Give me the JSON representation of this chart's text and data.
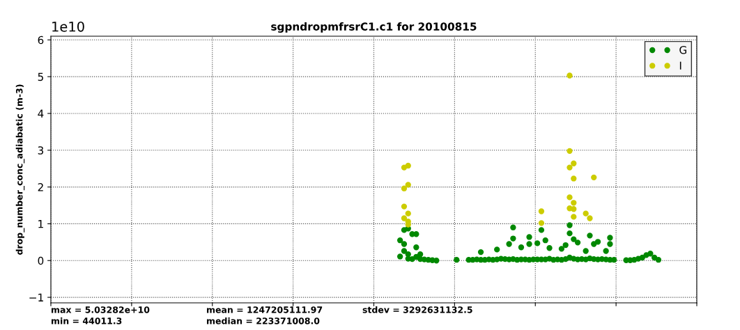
{
  "chart_data": {
    "type": "scatter",
    "title": "sgpndropmfrsrC1.c1 for 20100815",
    "ylabel": "drop_number_conc_adiabatic (m-3)",
    "annotations": [
      "1e10",
      "max = 5.03282e+10",
      "min = 44011.3",
      "mean = 1247205111.97",
      "median = 223371008.0",
      "stdev = 3292631132.5"
    ],
    "categories": [
      null,
      null,
      null,
      null,
      null,
      null,
      null,
      null,
      null,
      null,
      null,
      null,
      null,
      null,
      null,
      null,
      null,
      null,
      null,
      null,
      null,
      null,
      null,
      null,
      null,
      null,
      null,
      null,
      null,
      null,
      null,
      null,
      null,
      null,
      null,
      null,
      null,
      null,
      null,
      null,
      null,
      null,
      null,
      null,
      null,
      null,
      null,
      null,
      null,
      null,
      null,
      null,
      null,
      null,
      null,
      null,
      null,
      null,
      null,
      null,
      null,
      null,
      null,
      null,
      null,
      null,
      null,
      null,
      null,
      null,
      null,
      null,
      null,
      null,
      null,
      null,
      null,
      null,
      null,
      null,
      null,
      null,
      null,
      null,
      null,
      null,
      null,
      null,
      null,
      null,
      null,
      null,
      null,
      null,
      null,
      null,
      null,
      null,
      null,
      null,
      null,
      null,
      null,
      null,
      null,
      null,
      null,
      null,
      null,
      null,
      null,
      null,
      null,
      null,
      null,
      null,
      null,
      null,
      null,
      null,
      null,
      null,
      null,
      null,
      null,
      null,
      null,
      null,
      null,
      null,
      null,
      null,
      null,
      null,
      null,
      null,
      null,
      null,
      null,
      null,
      null,
      null,
      null,
      null,
      null,
      null,
      null,
      null,
      null,
      null,
      null,
      null,
      null,
      null,
      null,
      null,
      null,
      null,
      null,
      null
    ],
    "ylim": [
      -1.15,
      6.1
    ],
    "yticks": [
      {
        "value": -1,
        "label": "−1"
      },
      0,
      1,
      2,
      3,
      4,
      5,
      6
    ],
    "grid": true,
    "legend": "top right",
    "marker": "circle",
    "series": [
      {
        "name": "G",
        "color": "#008800",
        "values": [
          null,
          null,
          null,
          null,
          null,
          null,
          null,
          null,
          null,
          null,
          null,
          null,
          null,
          null,
          null,
          null,
          null,
          null,
          null,
          null,
          null,
          null,
          null,
          null,
          null,
          null,
          null,
          null,
          null,
          null,
          null,
          null,
          null,
          null,
          null,
          null,
          null,
          null,
          null,
          null,
          null,
          null,
          null,
          null,
          null,
          null,
          null,
          null,
          null,
          null,
          null,
          null,
          null,
          null,
          null,
          null,
          null,
          null,
          null,
          null,
          null,
          null,
          null,
          null,
          null,
          null,
          null,
          null,
          null,
          null,
          null,
          null,
          null,
          null,
          null,
          null,
          null,
          null,
          null,
          null,
          null,
          null,
          null,
          null,
          null,
          null,
          0.55,
          0.83,
          0.87,
          0.72,
          0.72,
          0.17,
          0.03,
          0.02,
          0.01,
          0.0,
          null,
          null,
          null,
          null,
          0.02,
          null,
          null,
          0.02,
          0.02,
          0.03,
          0.23,
          0.02,
          0.03,
          0.02,
          0.3,
          0.05,
          0.04,
          0.45,
          0.9,
          0.02,
          0.36,
          0.03,
          0.64,
          0.03,
          0.47,
          null,
          0.55,
          0.34,
          0.02,
          0.03,
          0.32,
          0.42,
          0.96,
          0.58,
          0.49,
          0.04,
          0.26,
          0.68,
          0.45,
          0.51,
          0.04,
          0.26,
          0.62,
          0.02,
          null,
          null,
          0.01,
          0.01,
          0.02,
          0.05,
          0.08,
          0.15,
          0.19,
          0.08,
          0.02,
          null,
          null,
          null,
          null,
          null,
          null,
          null,
          null,
          null
        ]
      },
      {
        "color": "#008800",
        "values": [
          null,
          null,
          null,
          null,
          null,
          null,
          null,
          null,
          null,
          null,
          null,
          null,
          null,
          null,
          null,
          null,
          null,
          null,
          null,
          null,
          null,
          null,
          null,
          null,
          null,
          null,
          null,
          null,
          null,
          null,
          null,
          null,
          null,
          null,
          null,
          null,
          null,
          null,
          null,
          null,
          null,
          null,
          null,
          null,
          null,
          null,
          null,
          null,
          null,
          null,
          null,
          null,
          null,
          null,
          null,
          null,
          null,
          null,
          null,
          null,
          null,
          null,
          null,
          null,
          null,
          null,
          null,
          null,
          null,
          null,
          null,
          null,
          null,
          null,
          null,
          null,
          null,
          null,
          null,
          null,
          null,
          null,
          null,
          null,
          null,
          null,
          0.11,
          0.45,
          0.17,
          0.04,
          0.36,
          0.04,
          null,
          null,
          null,
          null,
          null,
          null,
          null,
          null,
          null,
          null,
          null,
          null,
          null,
          null,
          0.02,
          null,
          null,
          null,
          0.03,
          null,
          null,
          0.03,
          0.6,
          null,
          0.03,
          null,
          0.45,
          null,
          0.03,
          0.83,
          0.03,
          0.05,
          null,
          null,
          0.02,
          0.04,
          0.74,
          0.05,
          0.03,
          null,
          0.03,
          0.06,
          0.04,
          0.03,
          null,
          0.03,
          0.45,
          null,
          null,
          null,
          null,
          null,
          null,
          null,
          null,
          null,
          null,
          null,
          null,
          null,
          null,
          null,
          null,
          null,
          null,
          null,
          null,
          null
        ]
      },
      {
        "color": "#008800",
        "values": [
          null,
          null,
          null,
          null,
          null,
          null,
          null,
          null,
          null,
          null,
          null,
          null,
          null,
          null,
          null,
          null,
          null,
          null,
          null,
          null,
          null,
          null,
          null,
          null,
          null,
          null,
          null,
          null,
          null,
          null,
          null,
          null,
          null,
          null,
          null,
          null,
          null,
          null,
          null,
          null,
          null,
          null,
          null,
          null,
          null,
          null,
          null,
          null,
          null,
          null,
          null,
          null,
          null,
          null,
          null,
          null,
          null,
          null,
          null,
          null,
          null,
          null,
          null,
          null,
          null,
          null,
          null,
          null,
          null,
          null,
          null,
          null,
          null,
          null,
          null,
          null,
          null,
          null,
          null,
          null,
          null,
          null,
          null,
          null,
          null,
          null,
          null,
          0.26,
          0.05,
          null,
          0.1,
          null,
          null,
          null,
          null,
          null,
          null,
          null,
          null,
          null,
          null,
          null,
          null,
          null,
          null,
          null,
          null,
          null,
          null,
          null,
          null,
          null,
          null,
          null,
          0.04,
          null,
          null,
          null,
          0.02,
          null,
          null,
          0.03,
          null,
          null,
          null,
          null,
          null,
          null,
          0.08,
          null,
          null,
          null,
          null,
          null,
          null,
          null,
          null,
          null,
          0.02,
          null,
          null,
          null,
          null,
          null,
          null,
          null,
          null,
          null,
          null,
          null,
          null,
          null,
          null,
          null,
          null,
          null,
          null,
          null,
          null,
          null
        ]
      },
      {
        "name": "I",
        "color": "#cccc00",
        "values": [
          null,
          null,
          null,
          null,
          null,
          null,
          null,
          null,
          null,
          null,
          null,
          null,
          null,
          null,
          null,
          null,
          null,
          null,
          null,
          null,
          null,
          null,
          null,
          null,
          null,
          null,
          null,
          null,
          null,
          null,
          null,
          null,
          null,
          null,
          null,
          null,
          null,
          null,
          null,
          null,
          null,
          null,
          null,
          null,
          null,
          null,
          null,
          null,
          null,
          null,
          null,
          null,
          null,
          null,
          null,
          null,
          null,
          null,
          null,
          null,
          null,
          null,
          null,
          null,
          null,
          null,
          null,
          null,
          null,
          null,
          null,
          null,
          null,
          null,
          null,
          null,
          null,
          null,
          null,
          null,
          null,
          null,
          null,
          null,
          null,
          null,
          null,
          2.53,
          2.58,
          null,
          null,
          null,
          null,
          null,
          null,
          null,
          null,
          null,
          null,
          null,
          null,
          null,
          null,
          null,
          null,
          null,
          null,
          null,
          null,
          null,
          null,
          null,
          null,
          null,
          null,
          null,
          null,
          null,
          null,
          null,
          null,
          1.34,
          null,
          null,
          null,
          null,
          null,
          null,
          5.03,
          2.64,
          null,
          null,
          1.28,
          1.15,
          2.26,
          null,
          null,
          null,
          null,
          null,
          null,
          null,
          null,
          null,
          null,
          null,
          null,
          null,
          null,
          null,
          null,
          null,
          null,
          null,
          null,
          null,
          null,
          null,
          null,
          null
        ]
      },
      {
        "color": "#cccc00",
        "values": [
          null,
          null,
          null,
          null,
          null,
          null,
          null,
          null,
          null,
          null,
          null,
          null,
          null,
          null,
          null,
          null,
          null,
          null,
          null,
          null,
          null,
          null,
          null,
          null,
          null,
          null,
          null,
          null,
          null,
          null,
          null,
          null,
          null,
          null,
          null,
          null,
          null,
          null,
          null,
          null,
          null,
          null,
          null,
          null,
          null,
          null,
          null,
          null,
          null,
          null,
          null,
          null,
          null,
          null,
          null,
          null,
          null,
          null,
          null,
          null,
          null,
          null,
          null,
          null,
          null,
          null,
          null,
          null,
          null,
          null,
          null,
          null,
          null,
          null,
          null,
          null,
          null,
          null,
          null,
          null,
          null,
          null,
          null,
          null,
          null,
          null,
          null,
          1.96,
          2.06,
          null,
          null,
          null,
          null,
          null,
          null,
          null,
          null,
          null,
          null,
          null,
          null,
          null,
          null,
          null,
          null,
          null,
          null,
          null,
          null,
          null,
          null,
          null,
          null,
          null,
          null,
          null,
          null,
          null,
          null,
          null,
          null,
          1.02,
          null,
          null,
          null,
          null,
          null,
          null,
          2.98,
          2.23,
          null,
          null,
          null,
          null,
          null,
          null,
          null,
          null,
          null,
          null,
          null,
          null,
          null,
          null,
          null,
          null,
          null,
          null,
          null,
          null,
          null,
          null,
          null,
          null,
          null,
          null,
          null,
          null,
          null,
          null
        ]
      },
      {
        "color": "#cccc00",
        "values": [
          null,
          null,
          null,
          null,
          null,
          null,
          null,
          null,
          null,
          null,
          null,
          null,
          null,
          null,
          null,
          null,
          null,
          null,
          null,
          null,
          null,
          null,
          null,
          null,
          null,
          null,
          null,
          null,
          null,
          null,
          null,
          null,
          null,
          null,
          null,
          null,
          null,
          null,
          null,
          null,
          null,
          null,
          null,
          null,
          null,
          null,
          null,
          null,
          null,
          null,
          null,
          null,
          null,
          null,
          null,
          null,
          null,
          null,
          null,
          null,
          null,
          null,
          null,
          null,
          null,
          null,
          null,
          null,
          null,
          null,
          null,
          null,
          null,
          null,
          null,
          null,
          null,
          null,
          null,
          null,
          null,
          null,
          null,
          null,
          null,
          null,
          null,
          1.47,
          1.28,
          null,
          null,
          null,
          null,
          null,
          null,
          null,
          null,
          null,
          null,
          null,
          null,
          null,
          null,
          null,
          null,
          null,
          null,
          null,
          null,
          null,
          null,
          null,
          null,
          null,
          null,
          null,
          null,
          null,
          null,
          null,
          null,
          null,
          null,
          null,
          null,
          null,
          null,
          null,
          2.53,
          1.57,
          null,
          null,
          null,
          null,
          null,
          null,
          null,
          null,
          null,
          null,
          null,
          null,
          null,
          null,
          null,
          null,
          null,
          null,
          null,
          null,
          null,
          null,
          null,
          null,
          null,
          null,
          null,
          null,
          null,
          null
        ]
      },
      {
        "color": "#cccc00",
        "values": [
          null,
          null,
          null,
          null,
          null,
          null,
          null,
          null,
          null,
          null,
          null,
          null,
          null,
          null,
          null,
          null,
          null,
          null,
          null,
          null,
          null,
          null,
          null,
          null,
          null,
          null,
          null,
          null,
          null,
          null,
          null,
          null,
          null,
          null,
          null,
          null,
          null,
          null,
          null,
          null,
          null,
          null,
          null,
          null,
          null,
          null,
          null,
          null,
          null,
          null,
          null,
          null,
          null,
          null,
          null,
          null,
          null,
          null,
          null,
          null,
          null,
          null,
          null,
          null,
          null,
          null,
          null,
          null,
          null,
          null,
          null,
          null,
          null,
          null,
          null,
          null,
          null,
          null,
          null,
          null,
          null,
          null,
          null,
          null,
          null,
          null,
          null,
          1.15,
          1.06,
          null,
          null,
          null,
          null,
          null,
          null,
          null,
          null,
          null,
          null,
          null,
          null,
          null,
          null,
          null,
          null,
          null,
          null,
          null,
          null,
          null,
          null,
          null,
          null,
          null,
          null,
          null,
          null,
          null,
          null,
          null,
          null,
          null,
          null,
          null,
          null,
          null,
          null,
          null,
          1.72,
          1.4,
          null,
          null,
          null,
          null,
          null,
          null,
          null,
          null,
          null,
          null,
          null,
          null,
          null,
          null,
          null,
          null,
          null,
          null,
          null,
          null,
          null,
          null,
          null,
          null,
          null,
          null,
          null,
          null,
          null,
          null
        ]
      },
      {
        "color": "#cccc00",
        "values": [
          null,
          null,
          null,
          null,
          null,
          null,
          null,
          null,
          null,
          null,
          null,
          null,
          null,
          null,
          null,
          null,
          null,
          null,
          null,
          null,
          null,
          null,
          null,
          null,
          null,
          null,
          null,
          null,
          null,
          null,
          null,
          null,
          null,
          null,
          null,
          null,
          null,
          null,
          null,
          null,
          null,
          null,
          null,
          null,
          null,
          null,
          null,
          null,
          null,
          null,
          null,
          null,
          null,
          null,
          null,
          null,
          null,
          null,
          null,
          null,
          null,
          null,
          null,
          null,
          null,
          null,
          null,
          null,
          null,
          null,
          null,
          null,
          null,
          null,
          null,
          null,
          null,
          null,
          null,
          null,
          null,
          null,
          null,
          null,
          null,
          null,
          null,
          null,
          0.98,
          null,
          null,
          null,
          null,
          null,
          null,
          null,
          null,
          null,
          null,
          null,
          null,
          null,
          null,
          null,
          null,
          null,
          null,
          null,
          null,
          null,
          null,
          null,
          null,
          null,
          null,
          null,
          null,
          null,
          null,
          null,
          null,
          null,
          null,
          null,
          null,
          null,
          null,
          null,
          1.42,
          1.19,
          null,
          null,
          null,
          null,
          null,
          null,
          null,
          null,
          null,
          null,
          null,
          null,
          null,
          null,
          null,
          null,
          null,
          null,
          null,
          null,
          null,
          null,
          null,
          null,
          null,
          null,
          null,
          null,
          null,
          null
        ]
      }
    ]
  }
}
